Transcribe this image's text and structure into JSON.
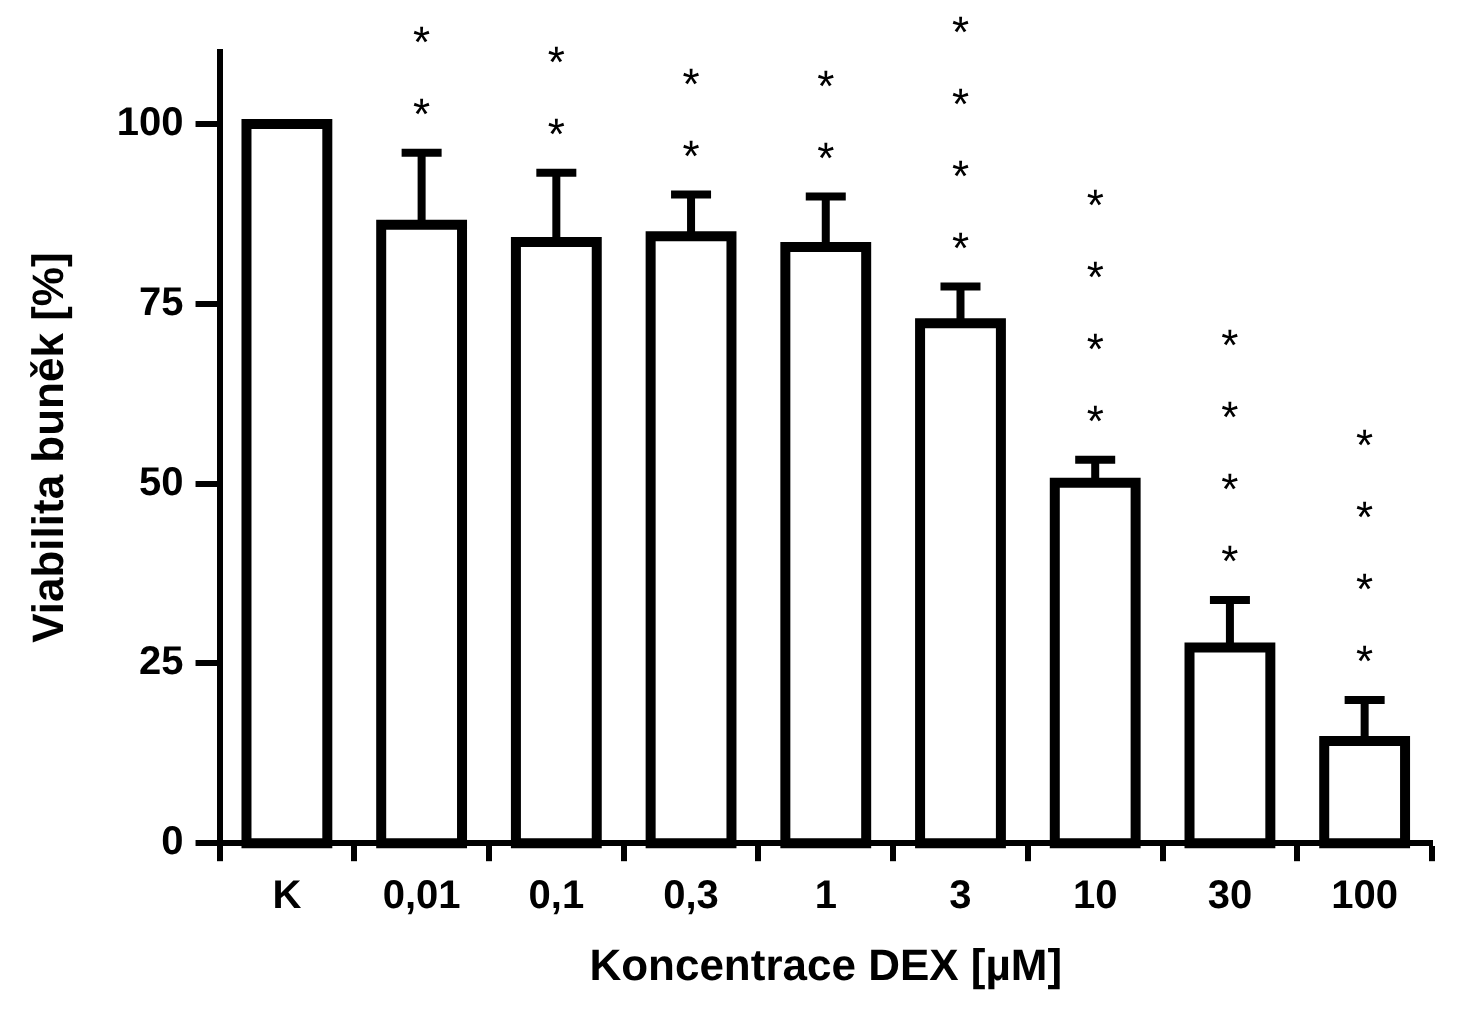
{
  "chart_data": {
    "type": "bar",
    "xlabel": "Koncentrace DEX [µM]",
    "ylabel": "Viabilita buněk [%]",
    "categories": [
      "K",
      "0,01",
      "0,1",
      "0,3",
      "1",
      "3",
      "10",
      "30",
      "100"
    ],
    "values": [
      100,
      86,
      83.6,
      84.4,
      82.9,
      72.3,
      50.1,
      27.2,
      14.2
    ],
    "errors": [
      null,
      [
        86,
        96
      ],
      [
        83.6,
        93.2
      ],
      [
        84.4,
        90.2
      ],
      [
        82.9,
        89.9
      ],
      [
        72.3,
        77.4
      ],
      [
        50.1,
        53.3
      ],
      [
        27.2,
        33.8
      ],
      [
        14.2,
        19.9
      ]
    ],
    "color": "#000000",
    "ylim": [
      0,
      110
    ],
    "yticks": [
      0,
      25,
      50,
      75,
      100
    ],
    "grid": false,
    "legend": false,
    "annotations": [
      {
        "text": "**",
        "x": "0,01",
        "y": 96
      },
      {
        "text": "**",
        "x": "0,1",
        "y": 93.2
      },
      {
        "text": "**",
        "x": "0,3",
        "y": 90.2
      },
      {
        "text": "**",
        "x": "1",
        "y": 89.9
      },
      {
        "text": "****",
        "x": "3",
        "y": 77.4
      },
      {
        "text": "****",
        "x": "10",
        "y": 53.3
      },
      {
        "text": "****",
        "x": "30",
        "y": 33.8
      },
      {
        "text": "****",
        "x": "100",
        "y": 19.9
      }
    ]
  }
}
